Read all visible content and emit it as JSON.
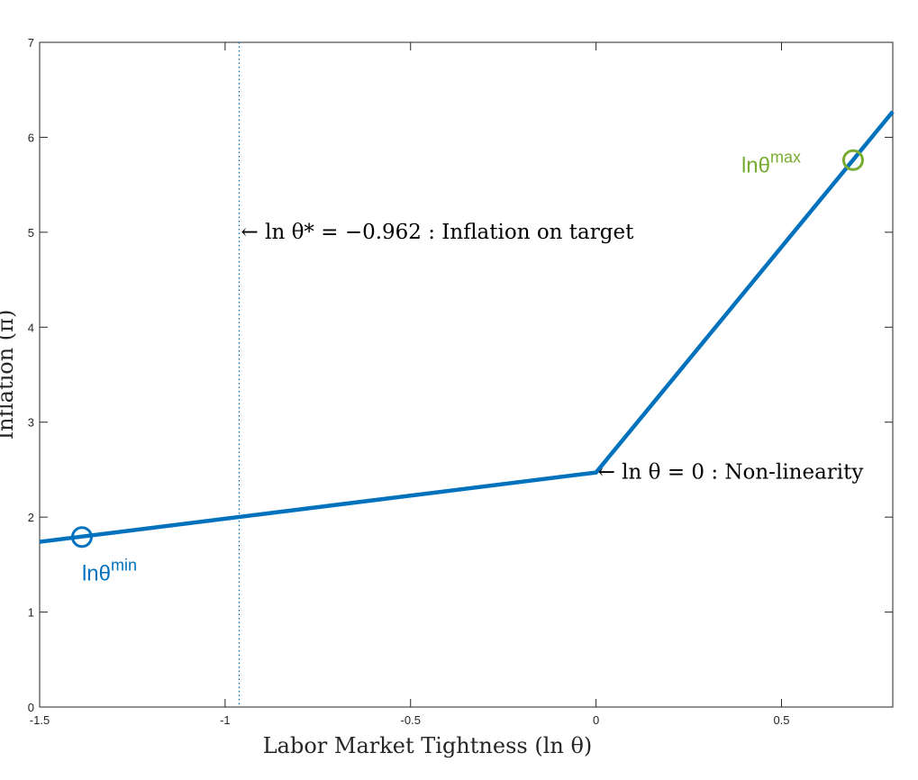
{
  "chart_data": {
    "type": "line",
    "xlabel": "Labor Market Tightness (ln θ)",
    "ylabel": "Inflation (π)",
    "xlim": [
      -1.5,
      0.8
    ],
    "ylim": [
      0,
      7
    ],
    "xticks": [
      -1.5,
      -1,
      -0.5,
      0,
      0.5
    ],
    "xtick_labels": [
      "-1.5",
      "-1",
      "-0.5",
      "0",
      "0.5"
    ],
    "yticks": [
      0,
      1,
      2,
      3,
      4,
      5,
      6,
      7
    ],
    "ytick_labels": [
      "0",
      "1",
      "2",
      "3",
      "4",
      "5",
      "6",
      "7"
    ],
    "grid": false,
    "series": [
      {
        "x": [
          -1.5,
          0,
          0.8
        ],
        "y": [
          1.74,
          2.47,
          6.27
        ],
        "color": "#0072bd"
      }
    ],
    "reference_lines": [
      {
        "orientation": "vertical",
        "x": -0.962,
        "style": "dotted",
        "color": "#0072bd"
      }
    ],
    "markers": [
      {
        "x": -1.386,
        "y": 1.79,
        "shape": "circle",
        "color": "#0072bd",
        "label_base": "lnθ",
        "label_sup": "min"
      },
      {
        "x": 0.693,
        "y": 5.76,
        "shape": "circle",
        "color": "#77ac30",
        "label_base": "lnθ",
        "label_sup": "max"
      }
    ],
    "annotations": [
      {
        "text": "← ln θ* = −0.962 : Inflation on target",
        "x": -0.962,
        "y": 5.0
      },
      {
        "text": "← ln θ = 0 : Non-linearity",
        "x": 0,
        "y": 2.47
      }
    ]
  }
}
